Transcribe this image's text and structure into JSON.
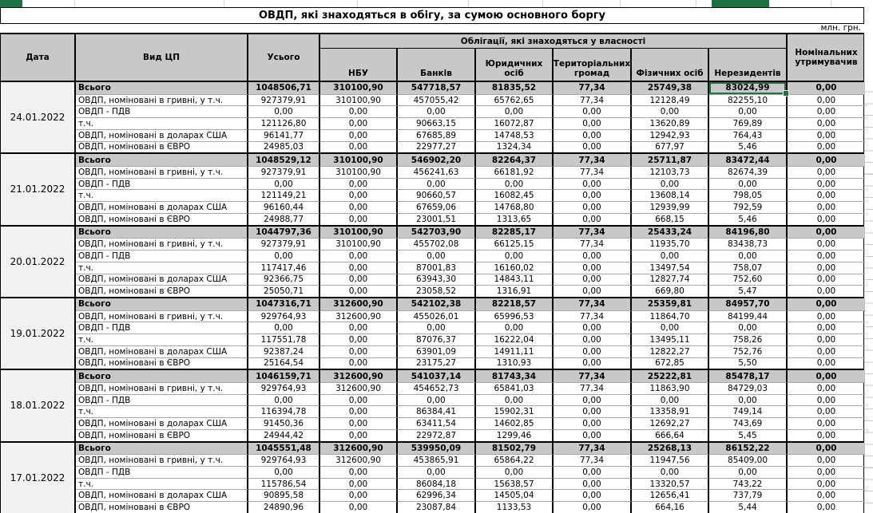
{
  "title": "ОВДП, які знаходяться в обігу, за сумою основного боргу",
  "unit_label": "млн. грн.",
  "colors": {
    "selection_green": "#217346",
    "top_highlight_green": "#1f7145",
    "header_grey": "#c8c8c8"
  },
  "columns": {
    "date": "Дата",
    "type": "Вид ЦП",
    "total": "Усього",
    "ownership_group": "Облігації, які знаходяться у власності",
    "owners": [
      "НБУ",
      "Банків",
      "Юридичних осіб",
      "Територіальних громад",
      "Фізичних осіб",
      "Нерезидентів"
    ],
    "nominal": "Номінальних утримувачив"
  },
  "row_labels": [
    "Всього",
    "ОВДП, номіновані в гривні, у т.ч.",
    "ОВДП - ПДВ",
    "т.ч.",
    "ОВДП, номіновані в доларах США",
    "ОВДП, номіновані в ЄВРО"
  ],
  "selected_cell": {
    "date": "24.01.2022",
    "row": "Всього",
    "column": "Нерезидентів",
    "value": "83024,99"
  },
  "blocks": [
    {
      "date": "24.01.2022",
      "rows": [
        [
          "1048506,71",
          "310100,90",
          "547718,57",
          "81835,52",
          "77,34",
          "25749,38",
          "83024,99",
          "0,00"
        ],
        [
          "927379,91",
          "310100,90",
          "457055,42",
          "65762,65",
          "77,34",
          "12128,49",
          "82255,10",
          "0,00"
        ],
        [
          "0,00",
          "0,00",
          "0,00",
          "0,00",
          "0,00",
          "0,00",
          "0,00",
          "0,00"
        ],
        [
          "121126,80",
          "0,00",
          "90663,15",
          "16072,87",
          "0,00",
          "13620,89",
          "769,89",
          "0,00"
        ],
        [
          "96141,77",
          "0,00",
          "67685,89",
          "14748,53",
          "0,00",
          "12942,93",
          "764,43",
          "0,00"
        ],
        [
          "24985,03",
          "0,00",
          "22977,27",
          "1324,34",
          "0,00",
          "677,97",
          "5,46",
          "0,00"
        ]
      ]
    },
    {
      "date": "21.01.2022",
      "rows": [
        [
          "1048529,12",
          "310100,90",
          "546902,20",
          "82264,37",
          "77,34",
          "25711,87",
          "83472,44",
          "0,00"
        ],
        [
          "927379,91",
          "310100,90",
          "456241,63",
          "66181,92",
          "77,34",
          "12103,73",
          "82674,39",
          "0,00"
        ],
        [
          "0,00",
          "0,00",
          "0,00",
          "0,00",
          "0,00",
          "0,00",
          "0,00",
          "0,00"
        ],
        [
          "121149,21",
          "0,00",
          "90660,57",
          "16082,45",
          "0,00",
          "13608,14",
          "798,05",
          "0,00"
        ],
        [
          "96160,44",
          "0,00",
          "67659,06",
          "14768,80",
          "0,00",
          "12939,99",
          "792,59",
          "0,00"
        ],
        [
          "24988,77",
          "0,00",
          "23001,51",
          "1313,65",
          "0,00",
          "668,15",
          "5,46",
          "0,00"
        ]
      ]
    },
    {
      "date": "20.01.2022",
      "rows": [
        [
          "1044797,36",
          "310100,90",
          "542703,90",
          "82285,17",
          "77,34",
          "25433,24",
          "84196,80",
          "0,00"
        ],
        [
          "927379,91",
          "310100,90",
          "455702,08",
          "66125,15",
          "77,34",
          "11935,70",
          "83438,73",
          "0,00"
        ],
        [
          "0,00",
          "0,00",
          "0,00",
          "0,00",
          "0,00",
          "0,00",
          "0,00",
          "0,00"
        ],
        [
          "117417,46",
          "0,00",
          "87001,83",
          "16160,02",
          "0,00",
          "13497,54",
          "758,07",
          "0,00"
        ],
        [
          "92366,75",
          "0,00",
          "63943,30",
          "14843,11",
          "0,00",
          "12827,74",
          "752,60",
          "0,00"
        ],
        [
          "25050,71",
          "0,00",
          "23058,52",
          "1316,91",
          "0,00",
          "669,80",
          "5,47",
          "0,00"
        ]
      ]
    },
    {
      "date": "19.01.2022",
      "rows": [
        [
          "1047316,71",
          "312600,90",
          "542102,38",
          "82218,57",
          "77,34",
          "25359,81",
          "84957,70",
          "0,00"
        ],
        [
          "929764,93",
          "312600,90",
          "455026,01",
          "65996,53",
          "77,34",
          "11864,70",
          "84199,44",
          "0,00"
        ],
        [
          "0,00",
          "0,00",
          "0,00",
          "0,00",
          "0,00",
          "0,00",
          "0,00",
          "0,00"
        ],
        [
          "117551,78",
          "0,00",
          "87076,37",
          "16222,04",
          "0,00",
          "13495,11",
          "758,26",
          "0,00"
        ],
        [
          "92387,24",
          "0,00",
          "63901,09",
          "14911,11",
          "0,00",
          "12822,27",
          "752,76",
          "0,00"
        ],
        [
          "25164,54",
          "0,00",
          "23175,27",
          "1310,93",
          "0,00",
          "672,85",
          "5,50",
          "0,00"
        ]
      ]
    },
    {
      "date": "18.01.2022",
      "rows": [
        [
          "1046159,71",
          "312600,90",
          "541037,14",
          "81743,34",
          "77,34",
          "25222,81",
          "85478,17",
          "0,00"
        ],
        [
          "929764,93",
          "312600,90",
          "454652,73",
          "65841,03",
          "77,34",
          "11863,90",
          "84729,03",
          "0,00"
        ],
        [
          "0,00",
          "0,00",
          "0,00",
          "0,00",
          "0,00",
          "0,00",
          "0,00",
          "0,00"
        ],
        [
          "116394,78",
          "0,00",
          "86384,41",
          "15902,31",
          "0,00",
          "13358,91",
          "749,14",
          "0,00"
        ],
        [
          "91450,36",
          "0,00",
          "63411,54",
          "14602,85",
          "0,00",
          "12692,27",
          "743,69",
          "0,00"
        ],
        [
          "24944,42",
          "0,00",
          "22972,87",
          "1299,46",
          "0,00",
          "666,64",
          "5,45",
          "0,00"
        ]
      ]
    },
    {
      "date": "17.01.2022",
      "rows": [
        [
          "1045551,48",
          "312600,90",
          "539950,09",
          "81502,79",
          "77,34",
          "25268,13",
          "86152,22",
          "0,00"
        ],
        [
          "929764,93",
          "312600,90",
          "453865,91",
          "65864,22",
          "77,34",
          "11947,56",
          "85409,00",
          "0,00"
        ],
        [
          "0,00",
          "0,00",
          "0,00",
          "0,00",
          "0,00",
          "0,00",
          "0,00",
          "0,00"
        ],
        [
          "115786,54",
          "0,00",
          "86084,18",
          "15638,57",
          "0,00",
          "13320,57",
          "743,22",
          "0,00"
        ],
        [
          "90895,58",
          "0,00",
          "62996,34",
          "14505,04",
          "0,00",
          "12656,41",
          "737,79",
          "0,00"
        ],
        [
          "24890,96",
          "0,00",
          "23087,84",
          "1133,53",
          "0,00",
          "664,16",
          "5,44",
          "0,00"
        ]
      ]
    }
  ]
}
